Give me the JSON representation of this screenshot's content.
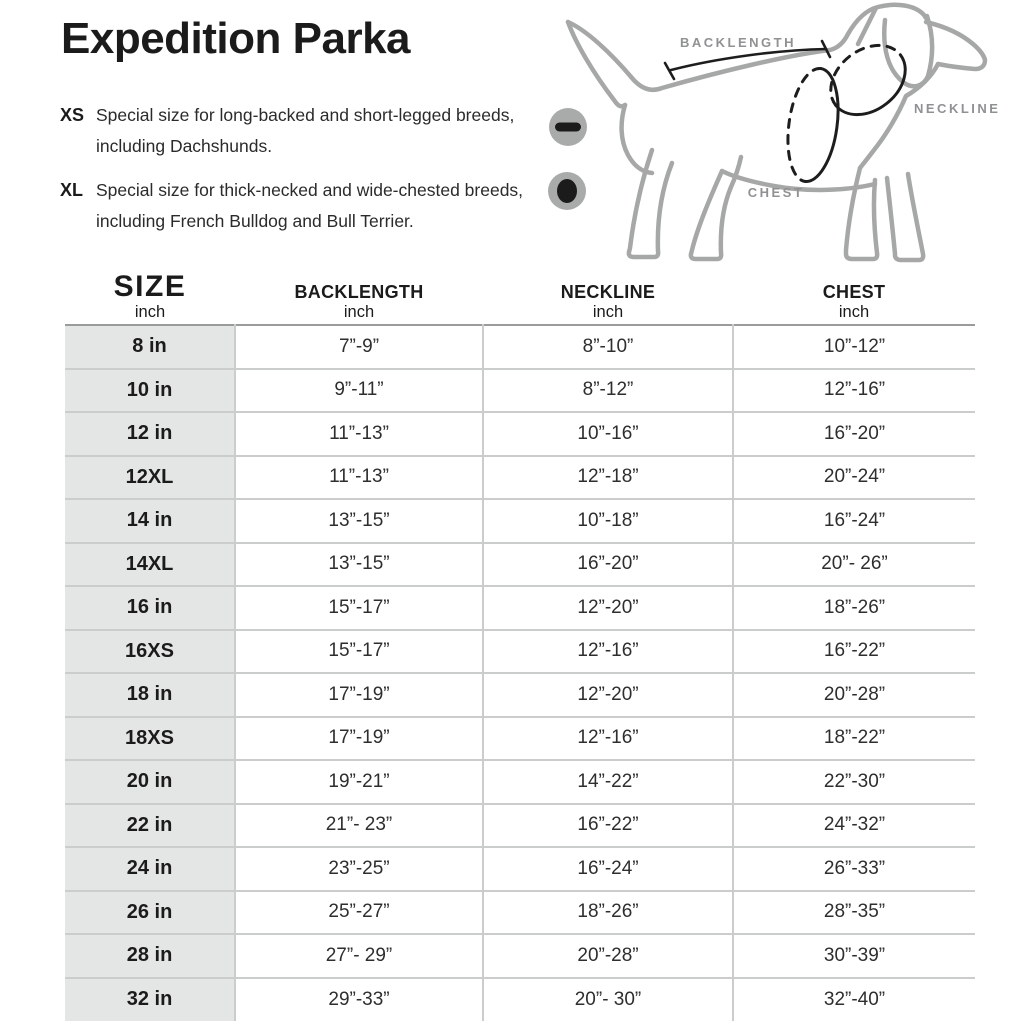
{
  "title": "Expedition Parka",
  "notes": [
    {
      "label": "XS",
      "text": "Special size for long-backed and short-legged breeds, including Dachshunds."
    },
    {
      "label": "XL",
      "text": "Special size for thick-necked and wide-chested breeds, including French Bulldog and Bull Terrier."
    }
  ],
  "diagram": {
    "backlength_label": "BACKLENGTH",
    "neckline_label": "NECKLINE",
    "chest_label": "CHEST",
    "legend_icons": [
      "bar-marker",
      "dot-marker"
    ]
  },
  "table": {
    "columns": [
      {
        "label": "SIZE",
        "sub": "inch"
      },
      {
        "label": "BACKLENGTH",
        "sub": "inch"
      },
      {
        "label": "NECKLINE",
        "sub": "inch"
      },
      {
        "label": "CHEST",
        "sub": "inch"
      }
    ],
    "rows": [
      {
        "size": "8 in",
        "backlength": "7”-9”",
        "neckline": "8”-10”",
        "chest": "10”-12”"
      },
      {
        "size": "10 in",
        "backlength": "9”-11”",
        "neckline": "8”-12”",
        "chest": "12”-16”"
      },
      {
        "size": "12 in",
        "backlength": "11”-13”",
        "neckline": "10”-16”",
        "chest": "16”-20”"
      },
      {
        "size": "12XL",
        "backlength": "11”-13”",
        "neckline": "12”-18”",
        "chest": "20”-24”"
      },
      {
        "size": "14 in",
        "backlength": "13”-15”",
        "neckline": "10”-18”",
        "chest": "16”-24”"
      },
      {
        "size": "14XL",
        "backlength": "13”-15”",
        "neckline": "16”-20”",
        "chest": "20”- 26”"
      },
      {
        "size": "16 in",
        "backlength": "15”-17”",
        "neckline": "12”-20”",
        "chest": "18”-26”"
      },
      {
        "size": "16XS",
        "backlength": "15”-17”",
        "neckline": "12”-16”",
        "chest": "16”-22”"
      },
      {
        "size": "18 in",
        "backlength": "17”-19”",
        "neckline": "12”-20”",
        "chest": "20”-28”"
      },
      {
        "size": "18XS",
        "backlength": "17”-19”",
        "neckline": "12”-16”",
        "chest": "18”-22”"
      },
      {
        "size": "20 in",
        "backlength": "19”-21”",
        "neckline": "14”-22”",
        "chest": "22”-30”"
      },
      {
        "size": "22 in",
        "backlength": "21”- 23”",
        "neckline": "16”-22”",
        "chest": "24”-32”"
      },
      {
        "size": "24 in",
        "backlength": "23”-25”",
        "neckline": "16”-24”",
        "chest": "26”-33”"
      },
      {
        "size": "26 in",
        "backlength": "25”-27”",
        "neckline": "18”-26”",
        "chest": "28”-35”"
      },
      {
        "size": "28 in",
        "backlength": "27”- 29”",
        "neckline": "20”-28”",
        "chest": "30”-39”"
      },
      {
        "size": "32 in",
        "backlength": "29”-33”",
        "neckline": "20”- 30”",
        "chest": "32”-40”"
      }
    ]
  },
  "colors": {
    "ink": "#1d1d1d",
    "dog_outline_gray": "#a6a8a7",
    "diagram_label_gray": "#8f9192",
    "table_rule": "#9a9c9b",
    "cell_border": "#cbcdcc",
    "size_column_bg": "#e4e6e5",
    "background": "#ffffff"
  }
}
